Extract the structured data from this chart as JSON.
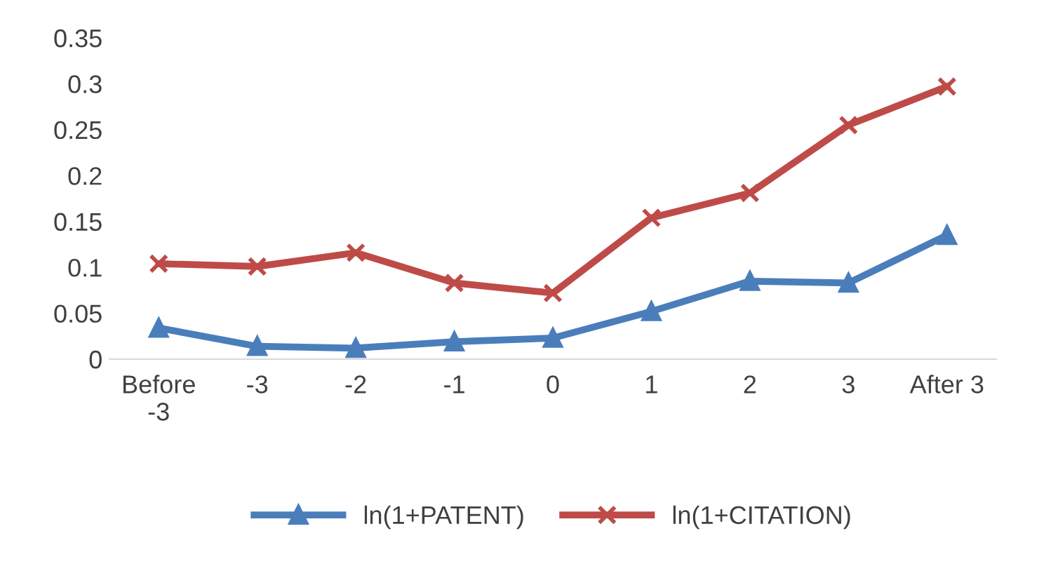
{
  "chart_data": {
    "type": "line",
    "categories": [
      "Before\n-3",
      "-3",
      "-2",
      "-1",
      "0",
      "1",
      "2",
      "3",
      "After 3"
    ],
    "series": [
      {
        "name": "ln(1+PATENT)",
        "color": "#4a7ebb",
        "marker": "triangle",
        "values": [
          0.034,
          0.014,
          0.012,
          0.019,
          0.023,
          0.052,
          0.085,
          0.083,
          0.135
        ]
      },
      {
        "name": "ln(1+CITATION)",
        "color": "#be4b48",
        "marker": "cross",
        "values": [
          0.104,
          0.101,
          0.116,
          0.083,
          0.072,
          0.154,
          0.181,
          0.255,
          0.297
        ]
      }
    ],
    "ylim": [
      0,
      0.35
    ],
    "yticks": [
      0,
      0.05,
      0.1,
      0.15,
      0.2,
      0.25,
      0.3,
      0.35
    ],
    "grid": false,
    "legend": "bottom"
  }
}
